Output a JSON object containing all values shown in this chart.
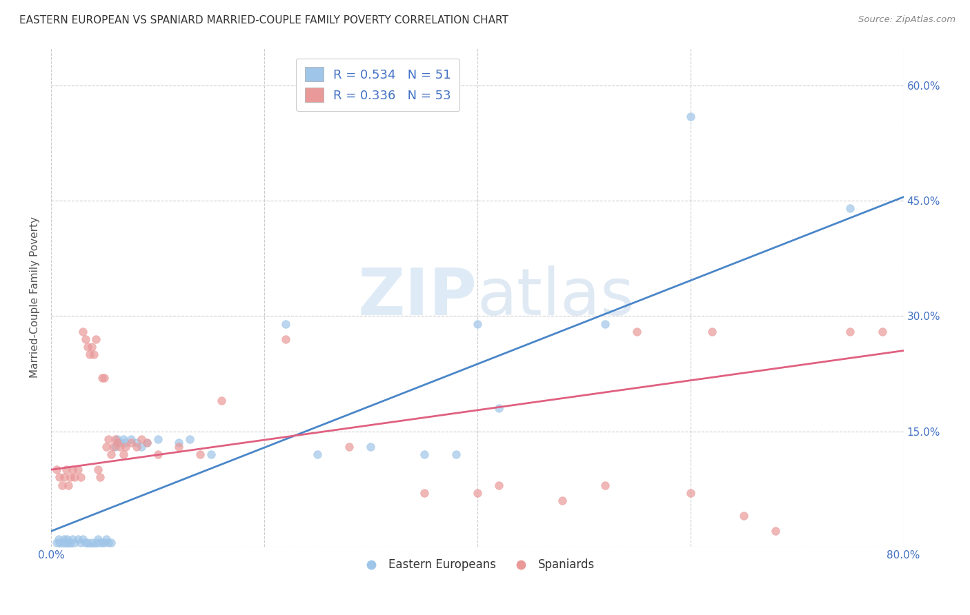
{
  "title": "EASTERN EUROPEAN VS SPANIARD MARRIED-COUPLE FAMILY POVERTY CORRELATION CHART",
  "source": "Source: ZipAtlas.com",
  "ylabel": "Married-Couple Family Poverty",
  "xlim": [
    0.0,
    0.8
  ],
  "ylim": [
    0.0,
    0.65
  ],
  "blue_color": "#9fc5e8",
  "pink_color": "#ea9999",
  "blue_line_color": "#4a86c8",
  "pink_line_color": "#e06080",
  "blue_r": 0.534,
  "blue_n": 51,
  "pink_r": 0.336,
  "pink_n": 53,
  "watermark_zip": "ZIP",
  "watermark_atlas": "atlas",
  "legend_label_blue": "Eastern Europeans",
  "legend_label_pink": "Spaniards",
  "blue_scatter": [
    [
      0.005,
      0.005
    ],
    [
      0.007,
      0.01
    ],
    [
      0.008,
      0.005
    ],
    [
      0.01,
      0.0
    ],
    [
      0.012,
      0.01
    ],
    [
      0.013,
      0.005
    ],
    [
      0.015,
      0.01
    ],
    [
      0.016,
      0.005
    ],
    [
      0.017,
      0.0
    ],
    [
      0.018,
      0.005
    ],
    [
      0.02,
      0.01
    ],
    [
      0.022,
      0.005
    ],
    [
      0.025,
      0.01
    ],
    [
      0.028,
      0.005
    ],
    [
      0.03,
      0.01
    ],
    [
      0.032,
      0.005
    ],
    [
      0.034,
      0.005
    ],
    [
      0.036,
      0.0
    ],
    [
      0.038,
      0.005
    ],
    [
      0.04,
      0.0
    ],
    [
      0.042,
      0.005
    ],
    [
      0.044,
      0.01
    ],
    [
      0.046,
      0.005
    ],
    [
      0.048,
      0.005
    ],
    [
      0.05,
      0.005
    ],
    [
      0.052,
      0.01
    ],
    [
      0.054,
      0.005
    ],
    [
      0.056,
      0.005
    ],
    [
      0.06,
      0.13
    ],
    [
      0.062,
      0.14
    ],
    [
      0.065,
      0.135
    ],
    [
      0.068,
      0.14
    ],
    [
      0.07,
      0.135
    ],
    [
      0.075,
      0.14
    ],
    [
      0.08,
      0.135
    ],
    [
      0.085,
      0.13
    ],
    [
      0.09,
      0.135
    ],
    [
      0.1,
      0.14
    ],
    [
      0.12,
      0.135
    ],
    [
      0.13,
      0.14
    ],
    [
      0.15,
      0.12
    ],
    [
      0.22,
      0.29
    ],
    [
      0.25,
      0.12
    ],
    [
      0.3,
      0.13
    ],
    [
      0.35,
      0.12
    ],
    [
      0.38,
      0.12
    ],
    [
      0.4,
      0.29
    ],
    [
      0.42,
      0.18
    ],
    [
      0.52,
      0.29
    ],
    [
      0.6,
      0.56
    ],
    [
      0.75,
      0.44
    ]
  ],
  "pink_scatter": [
    [
      0.005,
      0.1
    ],
    [
      0.008,
      0.09
    ],
    [
      0.01,
      0.08
    ],
    [
      0.012,
      0.09
    ],
    [
      0.014,
      0.1
    ],
    [
      0.016,
      0.08
    ],
    [
      0.018,
      0.09
    ],
    [
      0.02,
      0.1
    ],
    [
      0.022,
      0.09
    ],
    [
      0.025,
      0.1
    ],
    [
      0.028,
      0.09
    ],
    [
      0.03,
      0.28
    ],
    [
      0.032,
      0.27
    ],
    [
      0.034,
      0.26
    ],
    [
      0.036,
      0.25
    ],
    [
      0.038,
      0.26
    ],
    [
      0.04,
      0.25
    ],
    [
      0.042,
      0.27
    ],
    [
      0.044,
      0.1
    ],
    [
      0.046,
      0.09
    ],
    [
      0.048,
      0.22
    ],
    [
      0.05,
      0.22
    ],
    [
      0.052,
      0.13
    ],
    [
      0.054,
      0.14
    ],
    [
      0.056,
      0.12
    ],
    [
      0.058,
      0.13
    ],
    [
      0.06,
      0.14
    ],
    [
      0.062,
      0.135
    ],
    [
      0.065,
      0.13
    ],
    [
      0.068,
      0.12
    ],
    [
      0.07,
      0.13
    ],
    [
      0.075,
      0.135
    ],
    [
      0.08,
      0.13
    ],
    [
      0.085,
      0.14
    ],
    [
      0.09,
      0.135
    ],
    [
      0.1,
      0.12
    ],
    [
      0.12,
      0.13
    ],
    [
      0.14,
      0.12
    ],
    [
      0.16,
      0.19
    ],
    [
      0.22,
      0.27
    ],
    [
      0.28,
      0.13
    ],
    [
      0.35,
      0.07
    ],
    [
      0.4,
      0.07
    ],
    [
      0.42,
      0.08
    ],
    [
      0.48,
      0.06
    ],
    [
      0.52,
      0.08
    ],
    [
      0.55,
      0.28
    ],
    [
      0.6,
      0.07
    ],
    [
      0.62,
      0.28
    ],
    [
      0.65,
      0.04
    ],
    [
      0.68,
      0.02
    ],
    [
      0.75,
      0.28
    ],
    [
      0.78,
      0.28
    ]
  ]
}
